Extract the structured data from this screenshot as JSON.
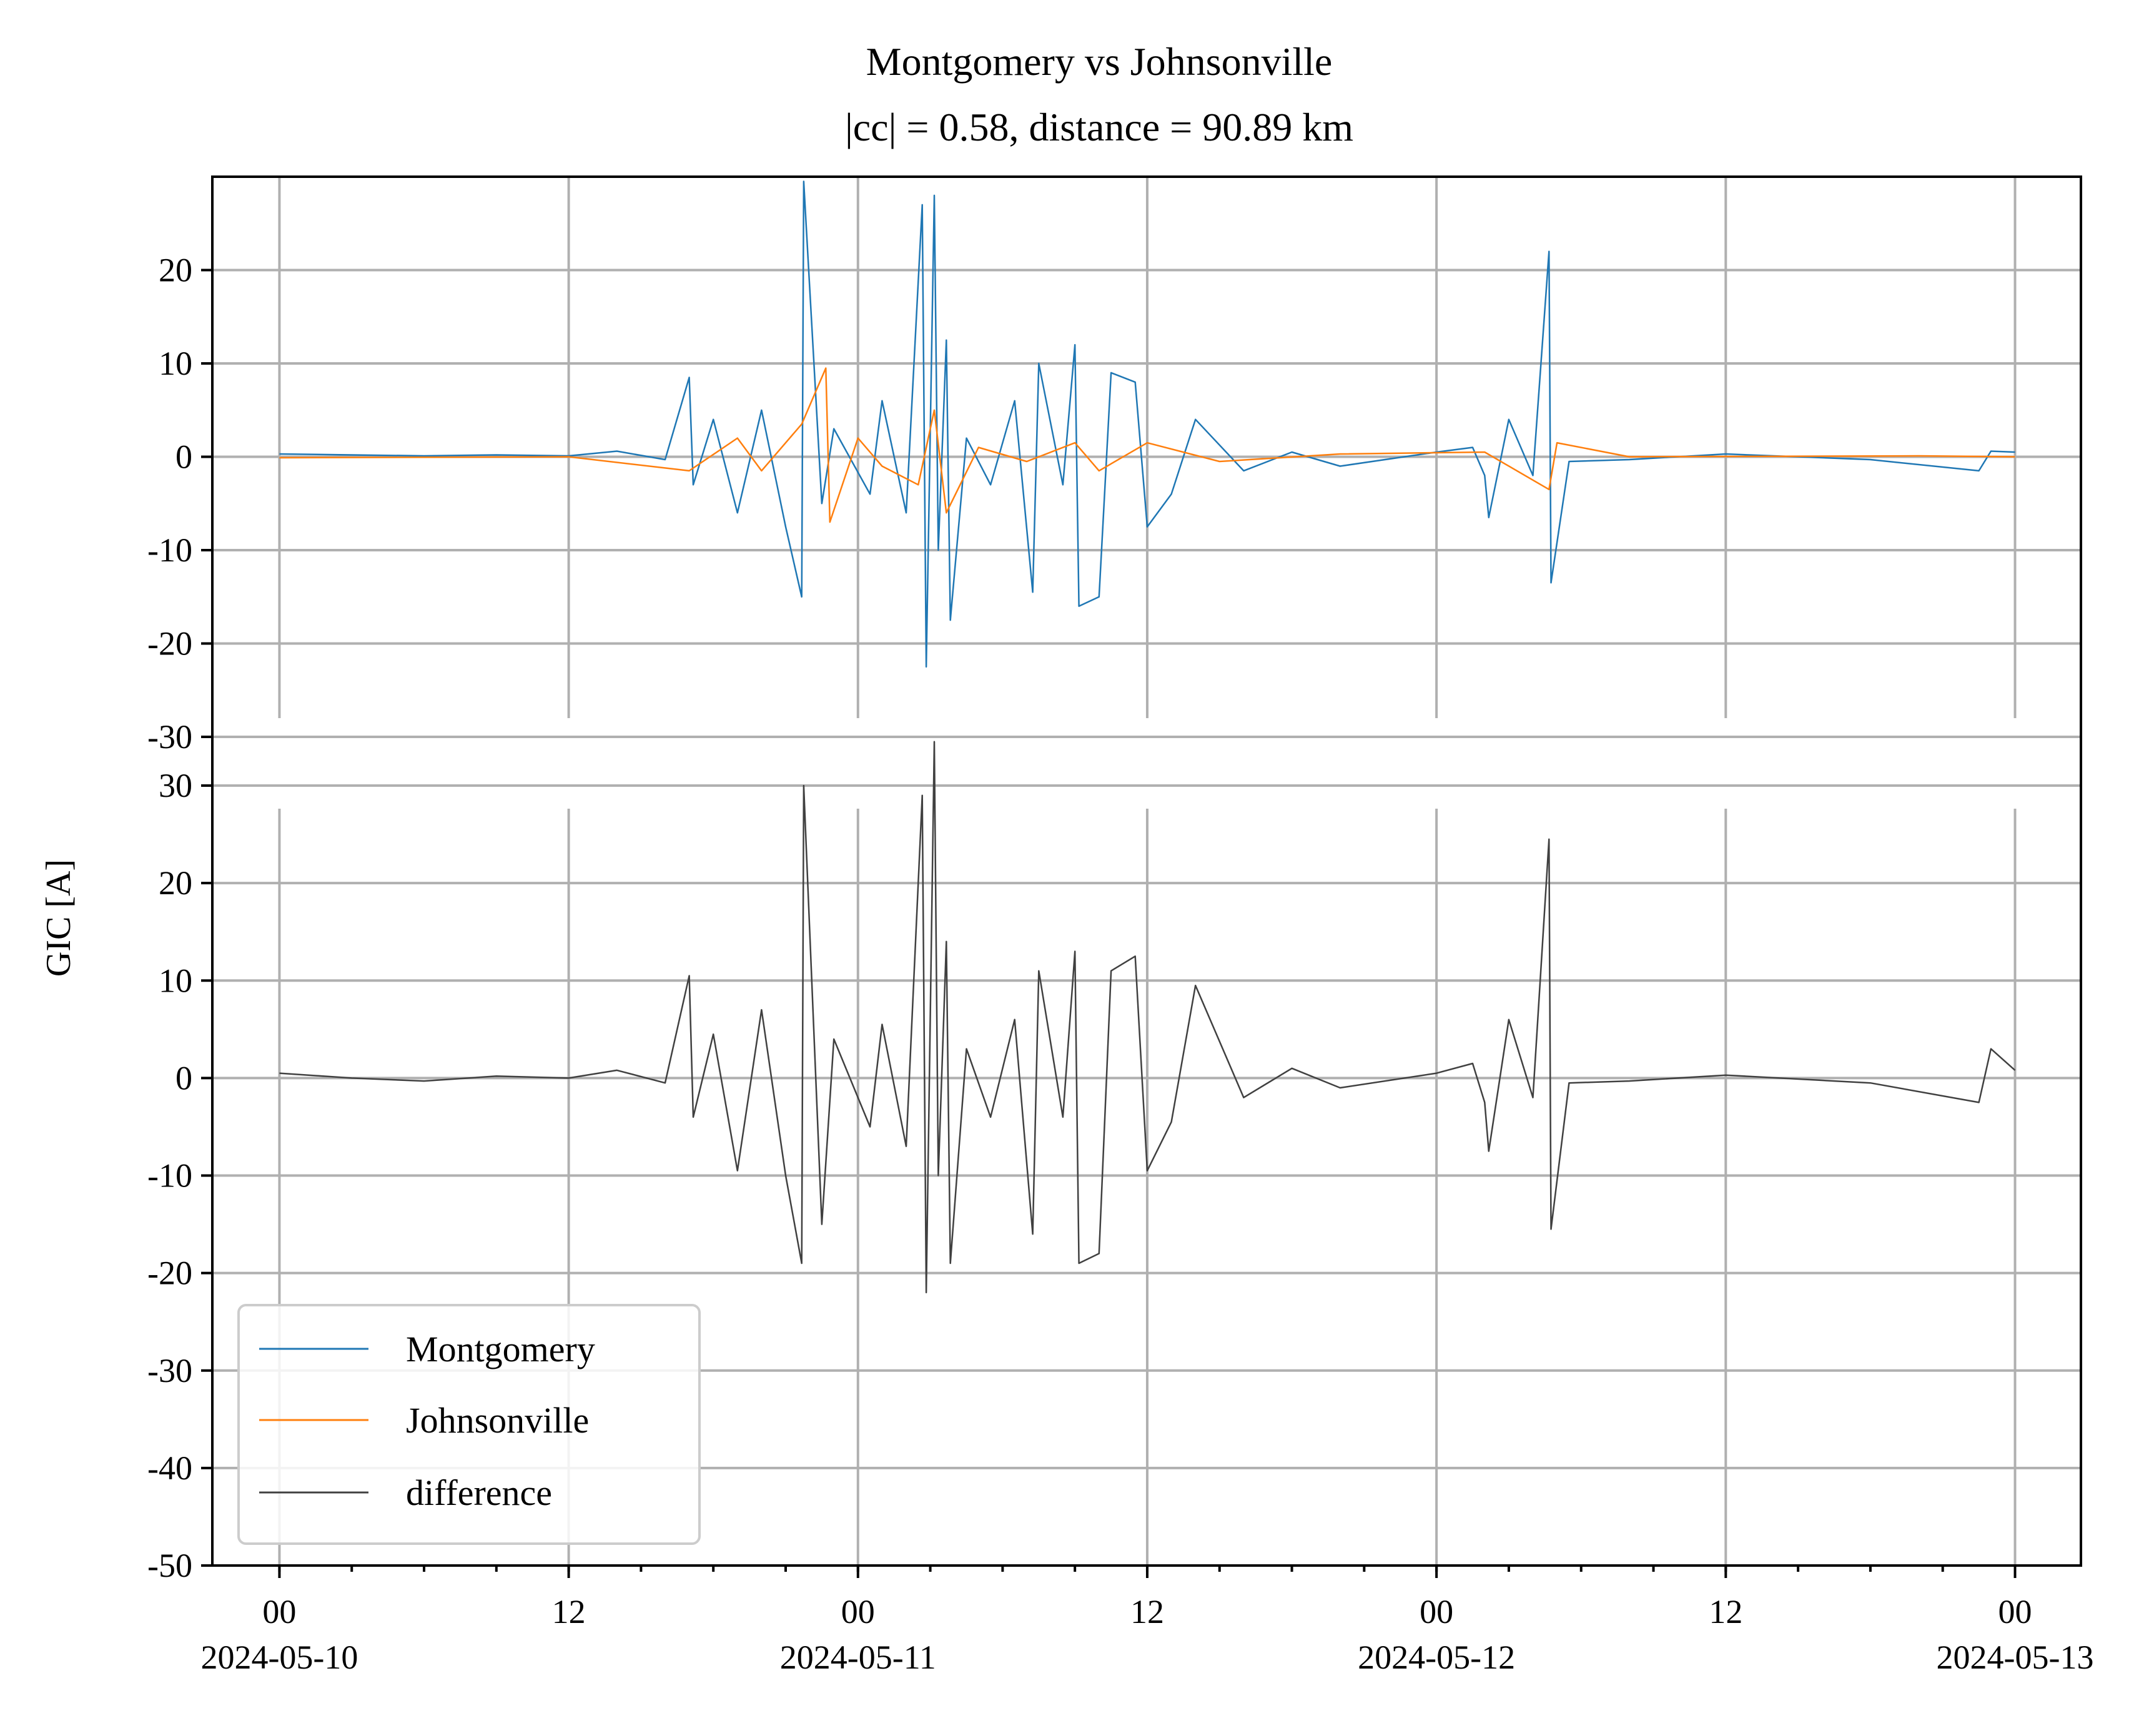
{
  "chart_data": {
    "type": "line",
    "title": "Montgomery vs Johnsonville",
    "subtitle": "|cc| = 0.58, distance = 90.89 km",
    "ylabel": "GIC [A]",
    "x_range": [
      "2024-05-09T21:13",
      "2024-05-13T02:44"
    ],
    "x_ticks": [
      {
        "time": "2024-05-10T00:00",
        "label": "00",
        "date_label": "2024-05-10"
      },
      {
        "time": "2024-05-10T12:00",
        "label": "12",
        "date_label": ""
      },
      {
        "time": "2024-05-11T00:00",
        "label": "00",
        "date_label": "2024-05-11"
      },
      {
        "time": "2024-05-11T12:00",
        "label": "12",
        "date_label": ""
      },
      {
        "time": "2024-05-12T00:00",
        "label": "00",
        "date_label": "2024-05-12"
      },
      {
        "time": "2024-05-12T12:00",
        "label": "12",
        "date_label": ""
      },
      {
        "time": "2024-05-13T00:00",
        "label": "00",
        "date_label": "2024-05-13"
      }
    ],
    "grid": true,
    "panels": [
      {
        "ylim": [
          -30,
          30
        ],
        "yticks": [
          "20",
          "10",
          "0",
          "-10",
          "-20",
          "-30"
        ],
        "ytick_values": [
          20,
          10,
          0,
          -10,
          -20,
          -30
        ],
        "series": [
          {
            "name": "Montgomery",
            "color": "#1f77b4",
            "points": [
              [
                "2024-05-10T00:00",
                0.3
              ],
              [
                "2024-05-10T03:00",
                0.2
              ],
              [
                "2024-05-10T06:00",
                0.1
              ],
              [
                "2024-05-10T09:00",
                0.2
              ],
              [
                "2024-05-10T12:00",
                0.1
              ],
              [
                "2024-05-10T14:00",
                0.6
              ],
              [
                "2024-05-10T16:00",
                -0.3
              ],
              [
                "2024-05-10T17:00",
                8.5
              ],
              [
                "2024-05-10T17:10",
                -3.0
              ],
              [
                "2024-05-10T18:00",
                4.0
              ],
              [
                "2024-05-10T19:00",
                -6.0
              ],
              [
                "2024-05-10T20:00",
                5.0
              ],
              [
                "2024-05-10T21:00",
                -7.5
              ],
              [
                "2024-05-10T21:40",
                -15.0
              ],
              [
                "2024-05-10T21:45",
                29.5
              ],
              [
                "2024-05-10T22:30",
                -5.0
              ],
              [
                "2024-05-10T23:00",
                3.0
              ],
              [
                "2024-05-11T00:30",
                -4.0
              ],
              [
                "2024-05-11T01:00",
                6.0
              ],
              [
                "2024-05-11T02:00",
                -6.0
              ],
              [
                "2024-05-11T02:40",
                27.0
              ],
              [
                "2024-05-11T02:50",
                -22.5
              ],
              [
                "2024-05-11T03:10",
                28.0
              ],
              [
                "2024-05-11T03:20",
                -10.0
              ],
              [
                "2024-05-11T03:40",
                12.5
              ],
              [
                "2024-05-11T03:50",
                -17.5
              ],
              [
                "2024-05-11T04:30",
                2.0
              ],
              [
                "2024-05-11T05:30",
                -3.0
              ],
              [
                "2024-05-11T06:30",
                6.0
              ],
              [
                "2024-05-11T07:15",
                -14.5
              ],
              [
                "2024-05-11T07:30",
                10.0
              ],
              [
                "2024-05-11T08:30",
                -3.0
              ],
              [
                "2024-05-11T09:00",
                12.0
              ],
              [
                "2024-05-11T09:10",
                -16.0
              ],
              [
                "2024-05-11T10:00",
                -15.0
              ],
              [
                "2024-05-11T10:30",
                9.0
              ],
              [
                "2024-05-11T11:30",
                8.0
              ],
              [
                "2024-05-11T12:00",
                -7.5
              ],
              [
                "2024-05-11T13:00",
                -4.0
              ],
              [
                "2024-05-11T14:00",
                4.0
              ],
              [
                "2024-05-11T16:00",
                -1.5
              ],
              [
                "2024-05-11T18:00",
                0.5
              ],
              [
                "2024-05-11T20:00",
                -1.0
              ],
              [
                "2024-05-12T00:00",
                0.5
              ],
              [
                "2024-05-12T01:30",
                1.0
              ],
              [
                "2024-05-12T02:00",
                -2.0
              ],
              [
                "2024-05-12T02:10",
                -6.5
              ],
              [
                "2024-05-12T03:00",
                4.0
              ],
              [
                "2024-05-12T04:00",
                -2.0
              ],
              [
                "2024-05-12T04:40",
                22.0
              ],
              [
                "2024-05-12T04:45",
                -13.5
              ],
              [
                "2024-05-12T05:30",
                -0.5
              ],
              [
                "2024-05-12T08:00",
                -0.3
              ],
              [
                "2024-05-12T12:00",
                0.3
              ],
              [
                "2024-05-12T18:00",
                -0.3
              ],
              [
                "2024-05-12T22:30",
                -1.5
              ],
              [
                "2024-05-12T23:00",
                0.6
              ],
              [
                "2024-05-13T00:00",
                0.5
              ]
            ]
          },
          {
            "name": "Johnsonville",
            "color": "#ff7f0e",
            "points": [
              [
                "2024-05-10T00:00",
                -0.1
              ],
              [
                "2024-05-10T12:00",
                0.0
              ],
              [
                "2024-05-10T17:00",
                -1.5
              ],
              [
                "2024-05-10T19:00",
                2.0
              ],
              [
                "2024-05-10T20:00",
                -1.5
              ],
              [
                "2024-05-10T21:40",
                3.5
              ],
              [
                "2024-05-10T22:40",
                9.5
              ],
              [
                "2024-05-10T22:50",
                -7.0
              ],
              [
                "2024-05-11T00:00",
                2.0
              ],
              [
                "2024-05-11T01:00",
                -1.0
              ],
              [
                "2024-05-11T02:30",
                -3.0
              ],
              [
                "2024-05-11T03:10",
                5.0
              ],
              [
                "2024-05-11T03:40",
                -6.0
              ],
              [
                "2024-05-11T05:00",
                1.0
              ],
              [
                "2024-05-11T07:00",
                -0.5
              ],
              [
                "2024-05-11T09:00",
                1.5
              ],
              [
                "2024-05-11T10:00",
                -1.5
              ],
              [
                "2024-05-11T12:00",
                1.5
              ],
              [
                "2024-05-11T15:00",
                -0.5
              ],
              [
                "2024-05-11T20:00",
                0.3
              ],
              [
                "2024-05-12T02:00",
                0.5
              ],
              [
                "2024-05-12T04:40",
                -3.5
              ],
              [
                "2024-05-12T05:00",
                1.5
              ],
              [
                "2024-05-12T08:00",
                0.0
              ],
              [
                "2024-05-12T20:00",
                0.1
              ],
              [
                "2024-05-13T00:00",
                0.0
              ]
            ]
          }
        ]
      },
      {
        "ylim": [
          -50,
          35
        ],
        "yticks": [
          "30",
          "20",
          "10",
          "0",
          "-10",
          "-20",
          "-30",
          "-40",
          "-50"
        ],
        "ytick_values": [
          30,
          20,
          10,
          0,
          -10,
          -20,
          -30,
          -40,
          -50
        ],
        "series": [
          {
            "name": "difference",
            "color": "#404040",
            "points": [
              [
                "2024-05-10T00:00",
                0.5
              ],
              [
                "2024-05-10T03:00",
                0.0
              ],
              [
                "2024-05-10T06:00",
                -0.3
              ],
              [
                "2024-05-10T09:00",
                0.2
              ],
              [
                "2024-05-10T12:00",
                0.0
              ],
              [
                "2024-05-10T14:00",
                0.8
              ],
              [
                "2024-05-10T16:00",
                -0.5
              ],
              [
                "2024-05-10T17:00",
                10.5
              ],
              [
                "2024-05-10T17:10",
                -4.0
              ],
              [
                "2024-05-10T18:00",
                4.5
              ],
              [
                "2024-05-10T19:00",
                -9.5
              ],
              [
                "2024-05-10T20:00",
                7.0
              ],
              [
                "2024-05-10T21:00",
                -10.0
              ],
              [
                "2024-05-10T21:40",
                -19.0
              ],
              [
                "2024-05-10T21:45",
                30.0
              ],
              [
                "2024-05-10T22:30",
                -15.0
              ],
              [
                "2024-05-10T23:00",
                4.0
              ],
              [
                "2024-05-11T00:30",
                -5.0
              ],
              [
                "2024-05-11T01:00",
                5.5
              ],
              [
                "2024-05-11T02:00",
                -7.0
              ],
              [
                "2024-05-11T02:40",
                29.0
              ],
              [
                "2024-05-11T02:50",
                -22.0
              ],
              [
                "2024-05-11T03:10",
                34.5
              ],
              [
                "2024-05-11T03:20",
                -10.0
              ],
              [
                "2024-05-11T03:40",
                14.0
              ],
              [
                "2024-05-11T03:50",
                -19.0
              ],
              [
                "2024-05-11T04:30",
                3.0
              ],
              [
                "2024-05-11T05:30",
                -4.0
              ],
              [
                "2024-05-11T06:30",
                6.0
              ],
              [
                "2024-05-11T07:15",
                -16.0
              ],
              [
                "2024-05-11T07:30",
                11.0
              ],
              [
                "2024-05-11T08:30",
                -4.0
              ],
              [
                "2024-05-11T09:00",
                13.0
              ],
              [
                "2024-05-11T09:10",
                -19.0
              ],
              [
                "2024-05-11T10:00",
                -18.0
              ],
              [
                "2024-05-11T10:30",
                11.0
              ],
              [
                "2024-05-11T11:30",
                12.5
              ],
              [
                "2024-05-11T12:00",
                -9.5
              ],
              [
                "2024-05-11T13:00",
                -4.5
              ],
              [
                "2024-05-11T14:00",
                9.5
              ],
              [
                "2024-05-11T16:00",
                -2.0
              ],
              [
                "2024-05-11T18:00",
                1.0
              ],
              [
                "2024-05-11T20:00",
                -1.0
              ],
              [
                "2024-05-12T00:00",
                0.5
              ],
              [
                "2024-05-12T01:30",
                1.5
              ],
              [
                "2024-05-12T02:00",
                -2.5
              ],
              [
                "2024-05-12T02:10",
                -7.5
              ],
              [
                "2024-05-12T03:00",
                6.0
              ],
              [
                "2024-05-12T04:00",
                -2.0
              ],
              [
                "2024-05-12T04:40",
                24.5
              ],
              [
                "2024-05-12T04:45",
                -15.5
              ],
              [
                "2024-05-12T05:30",
                -0.5
              ],
              [
                "2024-05-12T08:00",
                -0.3
              ],
              [
                "2024-05-12T12:00",
                0.3
              ],
              [
                "2024-05-12T18:00",
                -0.5
              ],
              [
                "2024-05-12T22:30",
                -2.5
              ],
              [
                "2024-05-12T23:00",
                3.0
              ],
              [
                "2024-05-13T00:00",
                0.8
              ]
            ]
          }
        ]
      }
    ],
    "legend": {
      "position": "lower-left",
      "entries": [
        {
          "label": "Montgomery",
          "color": "#1f77b4"
        },
        {
          "label": "Johnsonville",
          "color": "#ff7f0e"
        },
        {
          "label": "difference",
          "color": "#404040"
        }
      ]
    }
  }
}
